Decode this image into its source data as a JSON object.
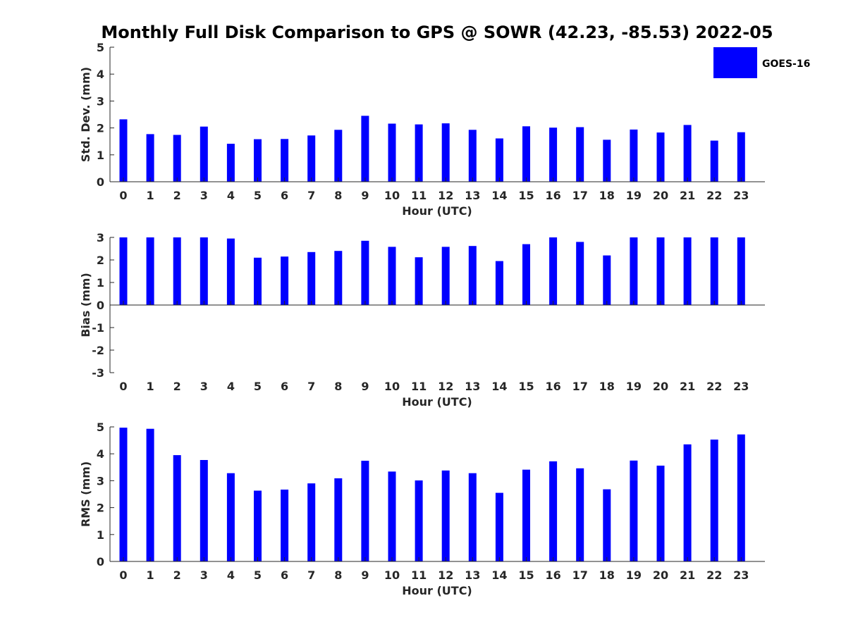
{
  "chart_data": {
    "title": "Monthly Full Disk Comparison to GPS @ SOWR (42.23, -85.53) 2022-05",
    "legend": {
      "entries": [
        "GOES-16"
      ],
      "placement": "top-right"
    },
    "colors": {
      "bar": "#0000ff",
      "axis": "#262626"
    },
    "panels": [
      {
        "type": "bar",
        "ylabel": "Std. Dev. (mm)",
        "xlabel": "Hour (UTC)",
        "ylim": [
          0,
          5
        ],
        "yticks": [
          0,
          1,
          2,
          3,
          4,
          5
        ],
        "categories": [
          "0",
          "1",
          "2",
          "3",
          "4",
          "5",
          "6",
          "7",
          "8",
          "9",
          "10",
          "11",
          "12",
          "13",
          "14",
          "15",
          "16",
          "17",
          "18",
          "19",
          "20",
          "21",
          "22",
          "23"
        ],
        "series": [
          {
            "name": "GOES-16",
            "values": [
              2.32,
              1.77,
              1.74,
              2.05,
              1.41,
              1.58,
              1.59,
              1.72,
              1.93,
              2.45,
              2.16,
              2.13,
              2.17,
              1.93,
              1.61,
              2.06,
              2.01,
              2.03,
              1.56,
              1.94,
              1.83,
              2.11,
              1.53,
              1.84
            ]
          }
        ]
      },
      {
        "type": "bar",
        "ylabel": "Bias (mm)",
        "xlabel": "Hour (UTC)",
        "ylim": [
          -3,
          3
        ],
        "yticks": [
          -3,
          -2,
          -1,
          0,
          1,
          2,
          3
        ],
        "categories": [
          "0",
          "1",
          "2",
          "3",
          "4",
          "5",
          "6",
          "7",
          "8",
          "9",
          "10",
          "11",
          "12",
          "13",
          "14",
          "15",
          "16",
          "17",
          "18",
          "19",
          "20",
          "21",
          "22",
          "23"
        ],
        "series": [
          {
            "name": "GOES-16",
            "values": [
              3.0,
              3.0,
              3.0,
              3.0,
              2.95,
              2.1,
              2.15,
              2.35,
              2.4,
              2.85,
              2.58,
              2.12,
              2.58,
              2.62,
              1.95,
              2.7,
              3.0,
              2.8,
              2.2,
              3.0,
              3.0,
              3.0,
              3.0,
              3.0
            ]
          }
        ]
      },
      {
        "type": "bar",
        "ylabel": "RMS (mm)",
        "xlabel": "Hour (UTC)",
        "ylim": [
          0,
          5
        ],
        "yticks": [
          0,
          1,
          2,
          3,
          4,
          5
        ],
        "categories": [
          "0",
          "1",
          "2",
          "3",
          "4",
          "5",
          "6",
          "7",
          "8",
          "9",
          "10",
          "11",
          "12",
          "13",
          "14",
          "15",
          "16",
          "17",
          "18",
          "19",
          "20",
          "21",
          "22",
          "23"
        ],
        "series": [
          {
            "name": "GOES-16",
            "values": [
              4.97,
              4.93,
              3.95,
              3.77,
              3.28,
              2.63,
              2.67,
              2.9,
              3.09,
              3.74,
              3.34,
              3.01,
              3.38,
              3.28,
              2.55,
              3.41,
              3.72,
              3.46,
              2.68,
              3.75,
              3.56,
              4.35,
              4.53,
              4.72
            ]
          }
        ]
      }
    ]
  }
}
